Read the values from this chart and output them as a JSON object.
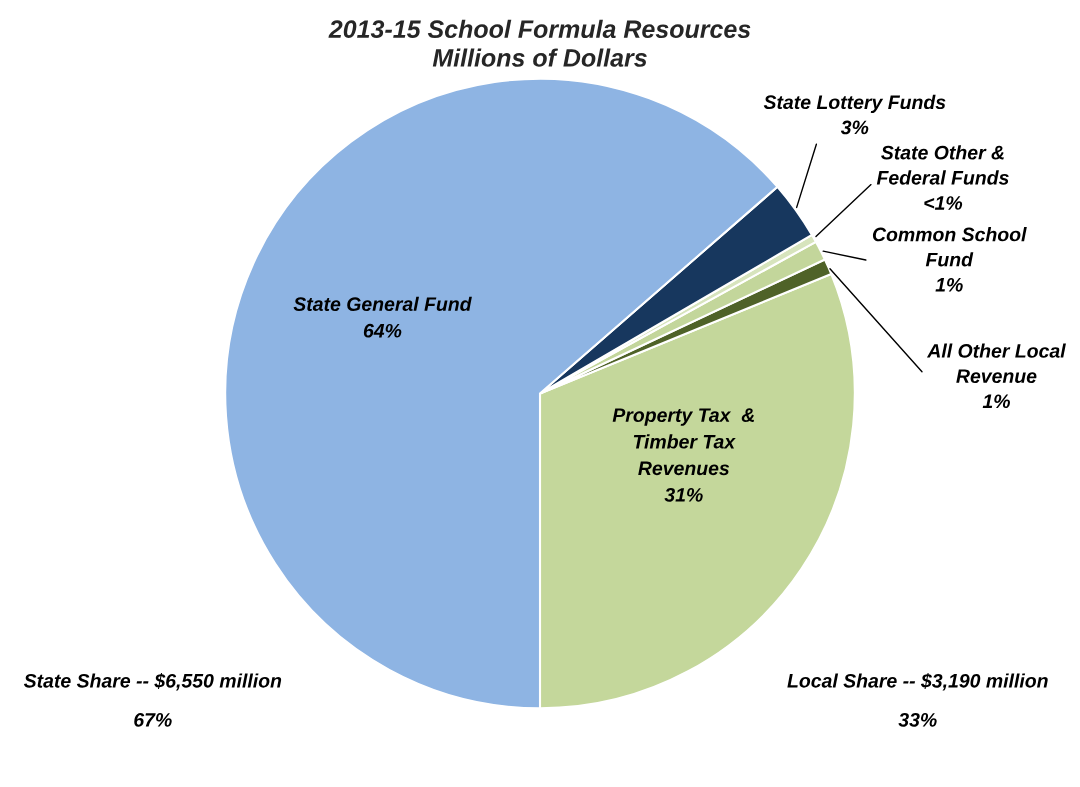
{
  "chart_data": {
    "type": "pie",
    "title": "2013-15 School Formula Resources\nMillions of Dollars",
    "categories": [
      "Property Tax  &\nTimber Tax\nRevenues",
      "All Other Local\nRevenue",
      "Common School\nFund",
      "State Other &\nFederal Funds",
      "State Lottery Funds",
      "State General Fund"
    ],
    "values": [
      31.2,
      0.8,
      1.0,
      0.4,
      3.0,
      63.6
    ],
    "value_labels": [
      "31%",
      "1%",
      "1%",
      "<1%",
      "3%",
      "64%"
    ],
    "colors": [
      "#c4d79b",
      "#4f6228",
      "#c3d69b",
      "#d7e4bd",
      "#17375e",
      "#8eb4e3"
    ],
    "annotations": [
      "State Share -- $6,550 million\n\n67%",
      "Local Share -- $3,190 million\n\n33%"
    ]
  }
}
